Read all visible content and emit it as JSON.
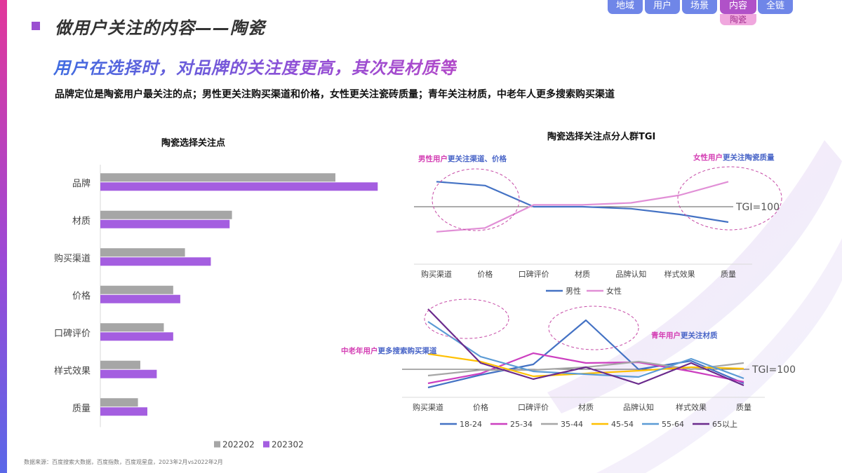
{
  "nav": {
    "tabs": [
      "地域",
      "用户",
      "场景",
      "内容",
      "全链"
    ],
    "active_index": 3,
    "active_sub": "陶瓷"
  },
  "header": {
    "title": "做用户关注的内容——陶瓷",
    "subtitle": "用户在选择时，对品牌的关注度更高，其次是材质等",
    "description": "品牌定位是陶瓷用户最关注的点；男性更关注购买渠道和价格，女性更关注瓷砖质量；青年关注材质，中老年人更多搜索购买渠道"
  },
  "colors": {
    "bar_2022": "#a6a6a6",
    "bar_2023": "#a45ee0",
    "male": "#4472c4",
    "female": "#e18fd6",
    "age_18_24": "#4472c4",
    "age_25_34": "#cc3fc0",
    "age_35_44": "#a6a6a6",
    "age_45_54": "#ffc000",
    "age_55_64": "#5b9bd5",
    "age_65_plus": "#6a2a8c",
    "annotation_pink": "#d43fb4",
    "annotation_blue": "#4a66c8"
  },
  "chart_data": [
    {
      "type": "bar",
      "orientation": "horizontal",
      "title": "陶瓷选择关注点",
      "categories": [
        "品牌",
        "材质",
        "购买渠道",
        "价格",
        "口碑评价",
        "样式效果",
        "质量"
      ],
      "series": [
        {
          "name": "202202",
          "values": [
            100,
            56,
            36,
            31,
            27,
            17,
            16
          ]
        },
        {
          "name": "202302",
          "values": [
            118,
            55,
            47,
            34,
            31,
            24,
            20
          ]
        }
      ],
      "xlim": [
        0,
        120
      ],
      "legend": "bottom",
      "grid": false
    },
    {
      "type": "line",
      "title": "陶瓷选择关注点分人群TGI",
      "categories": [
        "购买渠道",
        "价格",
        "口碑评价",
        "材质",
        "品牌认知",
        "样式效果",
        "质量"
      ],
      "series": [
        {
          "name": "男性",
          "values": [
            113,
            111,
            100,
            100,
            99,
            96,
            92
          ]
        },
        {
          "name": "女性",
          "values": [
            87,
            89,
            101,
            101,
            102,
            106,
            113
          ]
        }
      ],
      "ylim": [
        60,
        140
      ],
      "reference": {
        "value": 100,
        "label": "TGI=100"
      },
      "annotations": [
        {
          "parts": [
            "男性用户",
            "更关注渠道、价格"
          ]
        },
        {
          "parts": [
            "女性用户",
            "更关注陶瓷质量"
          ]
        }
      ],
      "legend": "bottom",
      "grid": false
    },
    {
      "type": "line",
      "categories": [
        "购买渠道",
        "价格",
        "口碑评价",
        "材质",
        "品牌认知",
        "样式效果",
        "质量"
      ],
      "series": [
        {
          "name": "18-24",
          "values": [
            74,
            92,
            107,
            170,
            100,
            112,
            80
          ]
        },
        {
          "name": "25-34",
          "values": [
            80,
            94,
            123,
            109,
            110,
            97,
            82
          ]
        },
        {
          "name": "35-44",
          "values": [
            91,
            99,
            99,
            103,
            111,
            100,
            109
          ]
        },
        {
          "name": "45-54",
          "values": [
            122,
            111,
            90,
            94,
            98,
            103,
            101
          ]
        },
        {
          "name": "55-64",
          "values": [
            168,
            118,
            97,
            93,
            89,
            115,
            87
          ]
        },
        {
          "name": "65以上",
          "values": [
            186,
            109,
            86,
            103,
            79,
            109,
            77
          ]
        }
      ],
      "ylim": [
        50,
        190
      ],
      "reference": {
        "value": 100,
        "label": "TGI=100"
      },
      "annotations": [
        {
          "parts": [
            "中老年用户",
            "更多搜索购买渠道"
          ]
        },
        {
          "parts": [
            "青年用户",
            "更关注材质"
          ]
        }
      ],
      "legend": "bottom",
      "grid": false
    }
  ],
  "footer": {
    "source": "数据来源：百度搜索大数据，百度指数，百度观星盘，2023年2月vs2022年2月"
  }
}
